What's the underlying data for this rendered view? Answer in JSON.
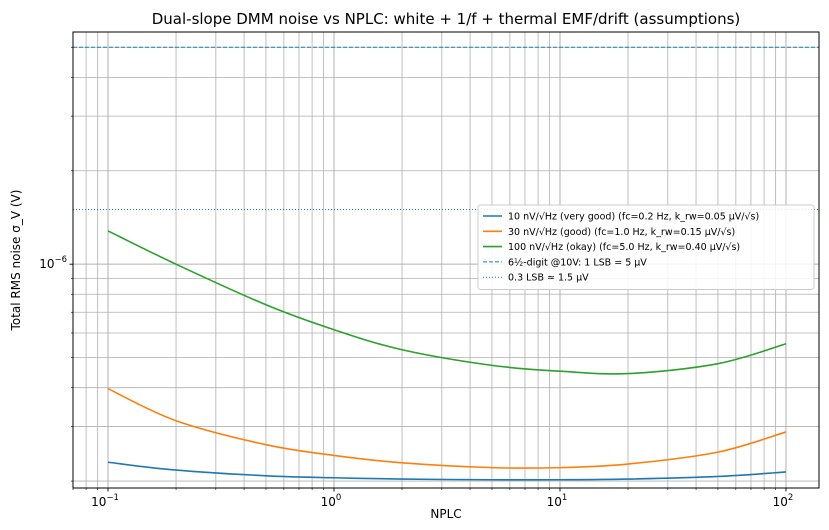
{
  "chart_data": {
    "type": "line",
    "title": "Dual-slope DMM noise vs NPLC: white + 1/f + thermal EMF/drift (assumptions)",
    "xlabel": "NPLC",
    "ylabel": "Total RMS noise σ_V (V)",
    "xscale": "log",
    "yscale": "log",
    "xlim": [
      0.07,
      140
    ],
    "ylim": [
      1.9e-07,
      5.6e-06
    ],
    "grid": "both (major and minor)",
    "xticks": [
      {
        "value": 0.1,
        "base": "10",
        "exp": "−1"
      },
      {
        "value": 1,
        "base": "10",
        "exp": "0"
      },
      {
        "value": 10,
        "base": "10",
        "exp": "1"
      },
      {
        "value": 100,
        "base": "10",
        "exp": "2"
      }
    ],
    "yticks": [
      {
        "value": 1e-06,
        "base": "10",
        "exp": "−6"
      }
    ],
    "x": [
      0.1,
      0.2,
      0.5,
      1,
      2,
      5,
      10,
      20,
      50,
      100
    ],
    "series": [
      {
        "name": "10 nV/√Hz (very good) (fc=0.2 Hz, k_rw=0.05 µV/√s)",
        "color": "#1f77b4",
        "style": "solid",
        "values": [
          2.3e-07,
          2.17e-07,
          2.08e-07,
          2.05e-07,
          2.03e-07,
          2.02e-07,
          2.02e-07,
          2.03e-07,
          2.07e-07,
          2.14e-07
        ]
      },
      {
        "name": "30 nV/√Hz (good) (fc=1.0 Hz, k_rw=0.15 µV/√s)",
        "color": "#ff7f0e",
        "style": "solid",
        "values": [
          3.97e-07,
          3.13e-07,
          2.62e-07,
          2.42e-07,
          2.29e-07,
          2.21e-07,
          2.21e-07,
          2.27e-07,
          2.48e-07,
          2.88e-07
        ]
      },
      {
        "name": "100 nV/√Hz (okay) (fc=5.0 Hz, k_rw=0.40 µV/√s)",
        "color": "#2ca02c",
        "style": "solid",
        "values": [
          1.28e-06,
          1e-06,
          7.4e-07,
          6.15e-07,
          5.3e-07,
          4.72e-07,
          4.52e-07,
          4.44e-07,
          4.78e-07,
          5.54e-07
        ]
      }
    ],
    "reference_lines": [
      {
        "name": "6½-digit @10V: 1 LSB = 5 µV",
        "value": 5e-06,
        "color": "#1f77b4",
        "style": "dashed"
      },
      {
        "name": "0.3 LSB ≈ 1.5 µV",
        "value": 1.5e-06,
        "color": "#1f77b4",
        "style": "dotted"
      }
    ],
    "legend_position": "right"
  }
}
